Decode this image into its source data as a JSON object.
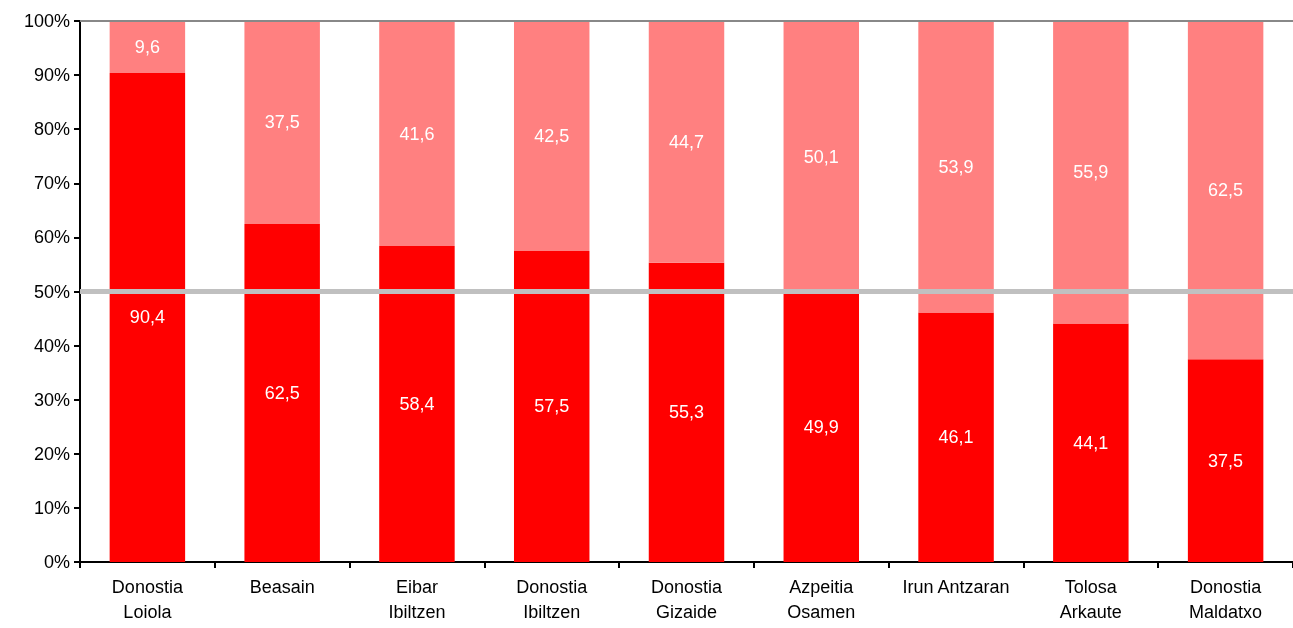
{
  "chart_data": {
    "type": "bar",
    "stacked": true,
    "categories": [
      "Donostia\nLoiola",
      "Beasain",
      "Eibar\nIbiltzen",
      "Donostia\nIbiltzen",
      "Donostia\nGizaide",
      "Azpeitia\nOsamen",
      "Irun Antzaran",
      "Tolosa\nArkaute",
      "Donostia\nMaldatxo"
    ],
    "series": [
      {
        "color": "#ff0000",
        "values": [
          90.4,
          62.5,
          58.4,
          57.5,
          55.3,
          49.9,
          46.1,
          44.1,
          37.5
        ],
        "value_labels": [
          "90,4",
          "62,5",
          "58,4",
          "57,5",
          "55,3",
          "49,9",
          "46,1",
          "44,1",
          "37,5"
        ]
      },
      {
        "color": "#ff8080",
        "values": [
          9.6,
          37.5,
          41.6,
          42.5,
          44.7,
          50.1,
          53.9,
          55.9,
          62.5
        ],
        "value_labels": [
          "9,6",
          "37,5",
          "41,6",
          "42,5",
          "44,7",
          "50,1",
          "53,9",
          "55,9",
          "62,5"
        ]
      }
    ],
    "ylim": [
      0,
      100
    ],
    "yticks": [
      {
        "value": 0,
        "label": "0%"
      },
      {
        "value": 10,
        "label": "10%"
      },
      {
        "value": 20,
        "label": "20%"
      },
      {
        "value": 30,
        "label": "30%"
      },
      {
        "value": 40,
        "label": "40%"
      },
      {
        "value": 50,
        "label": "50%"
      },
      {
        "value": 60,
        "label": "60%"
      },
      {
        "value": 70,
        "label": "70%"
      },
      {
        "value": 80,
        "label": "80%"
      },
      {
        "value": 90,
        "label": "90%"
      },
      {
        "value": 100,
        "label": "100%"
      }
    ],
    "ref_lines": [
      {
        "axis": "y",
        "value": 50,
        "color": "#c0c0c0"
      },
      {
        "axis": "y",
        "value": 100,
        "color": "#888888"
      }
    ]
  }
}
